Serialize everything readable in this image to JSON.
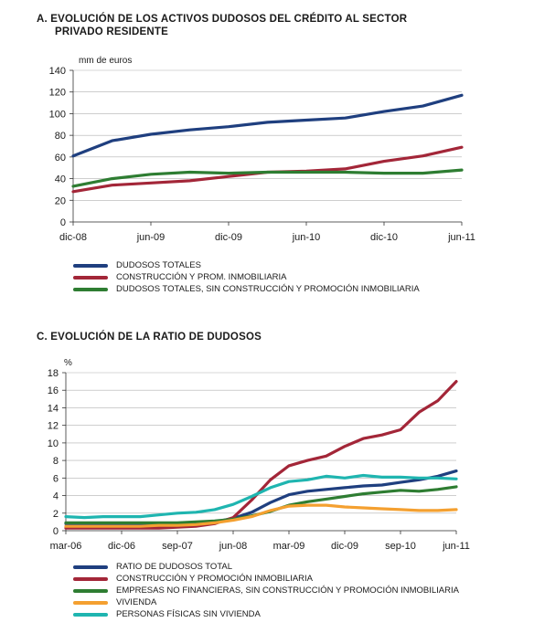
{
  "chart_data": [
    {
      "type": "line",
      "title_line1": "A.  EVOLUCIÓN DE LOS ACTIVOS DUDOSOS DEL CRÉDITO AL SECTOR",
      "title_line2": "PRIVADO RESIDENTE",
      "unit_label": "mm de euros",
      "ylim": [
        0,
        140
      ],
      "yticks": [
        "0",
        "20",
        "40",
        "60",
        "80",
        "100",
        "120",
        "140"
      ],
      "xlim": [
        0,
        30
      ],
      "xtick_positions": [
        0,
        6,
        12,
        18,
        24,
        30
      ],
      "xticks": [
        "dic-08",
        "jun-09",
        "dic-09",
        "jun-10",
        "dic-10",
        "jun-11"
      ],
      "x": [
        0,
        3,
        6,
        9,
        12,
        15,
        18,
        21,
        24,
        27,
        30
      ],
      "series": [
        {
          "name": "DUDOSOS TOTALES",
          "color": "#1f3f7f",
          "values": [
            61,
            75,
            81,
            85,
            88,
            92,
            94,
            96,
            102,
            107,
            117
          ]
        },
        {
          "name": "CONSTRUCCIÓN Y PROM. INMOBILIARIA",
          "color": "#a32638",
          "values": [
            28,
            34,
            36,
            38,
            42,
            46,
            47,
            49,
            56,
            61,
            69
          ]
        },
        {
          "name": "DUDOSOS TOTALES, SIN CONSTRUCCIÓN Y PROMOCIÓN INMOBILIARIA",
          "color": "#2e7d32",
          "values": [
            33,
            40,
            44,
            46,
            45,
            46,
            46,
            46,
            45,
            45,
            48
          ]
        }
      ]
    },
    {
      "type": "line",
      "title_line1": "C.  EVOLUCIÓN DE LA RATIO DE DUDOSOS",
      "unit_label": "%",
      "ylim": [
        0,
        18
      ],
      "yticks": [
        "0",
        "2",
        "4",
        "6",
        "8",
        "10",
        "12",
        "14",
        "16",
        "18"
      ],
      "xlim": [
        0,
        63
      ],
      "xtick_positions": [
        0,
        9,
        18,
        27,
        36,
        45,
        54,
        63
      ],
      "xticks": [
        "mar-06",
        "dic-06",
        "sep-07",
        "jun-08",
        "mar-09",
        "dic-09",
        "sep-10",
        "jun-11"
      ],
      "x": [
        0,
        3,
        6,
        9,
        12,
        15,
        18,
        21,
        24,
        27,
        30,
        33,
        36,
        39,
        42,
        45,
        48,
        51,
        54,
        57,
        60,
        63
      ],
      "series": [
        {
          "name": "RATIO DE DUDOSOS TOTAL",
          "color": "#1f3f7f",
          "values": [
            0.8,
            0.8,
            0.8,
            0.8,
            0.8,
            0.8,
            0.8,
            0.9,
            1.0,
            1.4,
            2.1,
            3.2,
            4.1,
            4.5,
            4.7,
            4.9,
            5.1,
            5.2,
            5.5,
            5.8,
            6.2,
            6.8
          ]
        },
        {
          "name": "CONSTRUCCIÓN Y PROMOCIÓN INMOBILIARIA",
          "color": "#a32638",
          "values": [
            0.3,
            0.3,
            0.3,
            0.3,
            0.3,
            0.3,
            0.4,
            0.5,
            0.8,
            1.5,
            3.5,
            5.8,
            7.4,
            8.0,
            8.5,
            9.6,
            10.5,
            10.9,
            11.5,
            13.5,
            14.8,
            17.0
          ]
        },
        {
          "name": "EMPRESAS NO FINANCIERAS, SIN CONSTRUCCIÓN Y PROMOCIÓN INMOBILIARIA",
          "color": "#2e7d32",
          "values": [
            0.9,
            0.9,
            0.9,
            0.9,
            0.9,
            0.9,
            0.9,
            1.0,
            1.1,
            1.3,
            1.7,
            2.2,
            2.9,
            3.3,
            3.6,
            3.9,
            4.2,
            4.4,
            4.6,
            4.5,
            4.7,
            5.0
          ]
        },
        {
          "name": "VIVIENDA",
          "color": "#f4a030",
          "values": [
            0.5,
            0.5,
            0.5,
            0.5,
            0.5,
            0.6,
            0.6,
            0.7,
            0.9,
            1.2,
            1.6,
            2.3,
            2.8,
            2.9,
            2.9,
            2.7,
            2.6,
            2.5,
            2.4,
            2.3,
            2.3,
            2.4
          ]
        },
        {
          "name": "PERSONAS FÍSICAS SIN VIVIENDA",
          "color": "#1fb5b0",
          "values": [
            1.6,
            1.5,
            1.6,
            1.6,
            1.6,
            1.8,
            2.0,
            2.1,
            2.4,
            3.0,
            3.9,
            4.9,
            5.6,
            5.8,
            6.2,
            6.0,
            6.3,
            6.1,
            6.1,
            6.0,
            6.0,
            5.9
          ]
        }
      ]
    }
  ]
}
